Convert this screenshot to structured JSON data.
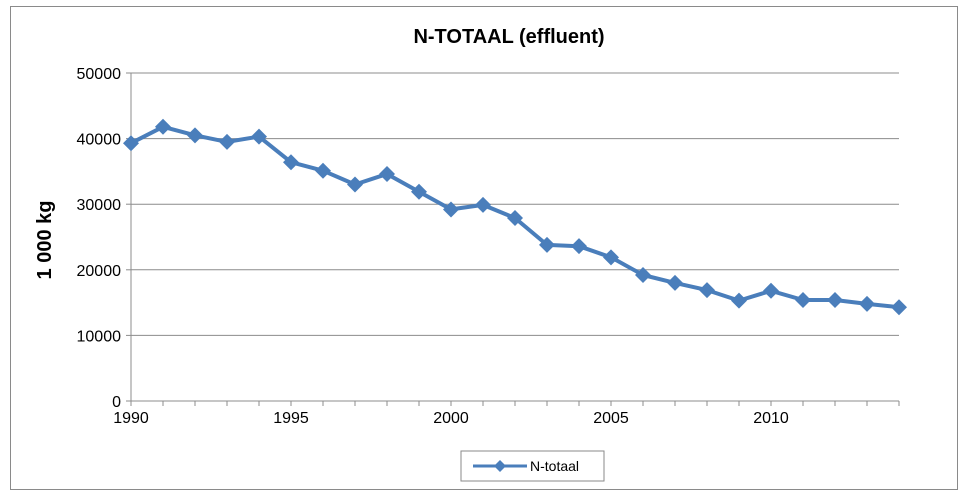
{
  "chart_data": {
    "type": "line",
    "title": "N-TOTAAL (effluent)",
    "xlabel": "",
    "ylabel": "1 000 kg",
    "xlim": [
      1990,
      2014
    ],
    "ylim": [
      0,
      50000
    ],
    "x_ticks": [
      1990,
      1995,
      2000,
      2005,
      2010
    ],
    "y_ticks": [
      0,
      10000,
      20000,
      30000,
      40000,
      50000
    ],
    "grid": "horizontal",
    "legend_position": "bottom",
    "series": [
      {
        "name": "N-totaal",
        "color": "#4a7ebb",
        "marker": "diamond",
        "x": [
          1990,
          1991,
          1992,
          1993,
          1994,
          1995,
          1996,
          1997,
          1998,
          1999,
          2000,
          2001,
          2002,
          2003,
          2004,
          2005,
          2006,
          2007,
          2008,
          2009,
          2010,
          2011,
          2012,
          2013,
          2014
        ],
        "values": [
          39300,
          41800,
          40500,
          39500,
          40300,
          36400,
          35100,
          33000,
          34600,
          31900,
          29200,
          29900,
          27900,
          23800,
          23600,
          21900,
          19200,
          18000,
          16900,
          15300,
          16800,
          15400,
          15400,
          14800,
          14300
        ]
      }
    ]
  }
}
